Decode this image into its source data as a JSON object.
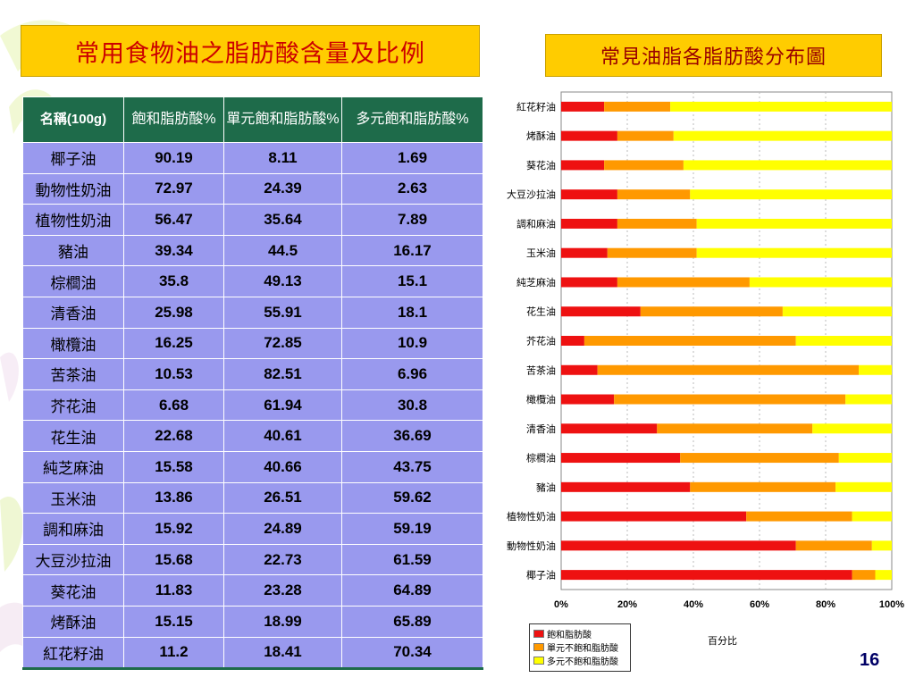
{
  "slide": {
    "title": "常用食物油之脂肪酸含量及比例",
    "subtitle": "常見油脂各脂肪酸分布圖",
    "page_number": "16"
  },
  "table": {
    "headers": [
      "名稱(100g)",
      "飽和脂肪酸%",
      "單元飽和脂肪酸%",
      "多元飽和脂肪酸%"
    ],
    "rows": [
      {
        "name": "椰子油",
        "sat": "90.19",
        "mono": "8.11",
        "poly": "1.69"
      },
      {
        "name": "動物性奶油",
        "sat": "72.97",
        "mono": "24.39",
        "poly": "2.63"
      },
      {
        "name": "植物性奶油",
        "sat": "56.47",
        "mono": "35.64",
        "poly": "7.89"
      },
      {
        "name": "豬油",
        "sat": "39.34",
        "mono": "44.5",
        "poly": "16.17"
      },
      {
        "name": "棕櫚油",
        "sat": "35.8",
        "mono": "49.13",
        "poly": "15.1"
      },
      {
        "name": "清香油",
        "sat": "25.98",
        "mono": "55.91",
        "poly": "18.1"
      },
      {
        "name": "橄欖油",
        "sat": "16.25",
        "mono": "72.85",
        "poly": "10.9"
      },
      {
        "name": "苦茶油",
        "sat": "10.53",
        "mono": "82.51",
        "poly": "6.96"
      },
      {
        "name": "芥花油",
        "sat": "6.68",
        "mono": "61.94",
        "poly": "30.8"
      },
      {
        "name": "花生油",
        "sat": "22.68",
        "mono": "40.61",
        "poly": "36.69"
      },
      {
        "name": "純芝麻油",
        "sat": "15.58",
        "mono": "40.66",
        "poly": "43.75"
      },
      {
        "name": "玉米油",
        "sat": "13.86",
        "mono": "26.51",
        "poly": "59.62"
      },
      {
        "name": "調和麻油",
        "sat": "15.92",
        "mono": "24.89",
        "poly": "59.19"
      },
      {
        "name": "大豆沙拉油",
        "sat": "15.68",
        "mono": "22.73",
        "poly": "61.59"
      },
      {
        "name": "葵花油",
        "sat": "11.83",
        "mono": "23.28",
        "poly": "64.89"
      },
      {
        "name": "烤酥油",
        "sat": "15.15",
        "mono": "18.99",
        "poly": "65.89"
      },
      {
        "name": "紅花籽油",
        "sat": "11.2",
        "mono": "18.41",
        "poly": "70.34"
      }
    ]
  },
  "chart_data": {
    "type": "bar",
    "orientation": "horizontal",
    "stacked": true,
    "categories": [
      "紅花籽油",
      "烤酥油",
      "葵花油",
      "大豆沙拉油",
      "調和麻油",
      "玉米油",
      "純芝麻油",
      "花生油",
      "芥花油",
      "苦茶油",
      "橄欖油",
      "清香油",
      "棕櫚油",
      "豬油",
      "植物性奶油",
      "動物性奶油",
      "椰子油"
    ],
    "series": [
      {
        "name": "飽和脂肪酸",
        "color": "#ee1111",
        "values": [
          13,
          17,
          13,
          17,
          17,
          14,
          17,
          24,
          7,
          11,
          16,
          29,
          36,
          39,
          56,
          71,
          88
        ]
      },
      {
        "name": "單元不飽和脂肪酸",
        "color": "#ff9900",
        "values": [
          20,
          17,
          24,
          22,
          24,
          27,
          40,
          43,
          64,
          79,
          70,
          47,
          48,
          44,
          32,
          23,
          7
        ]
      },
      {
        "name": "多元不飽和脂肪酸",
        "color": "#ffff00",
        "values": [
          67,
          66,
          63,
          61,
          59,
          59,
          43,
          33,
          29,
          10,
          14,
          24,
          16,
          17,
          12,
          6,
          5
        ]
      }
    ],
    "xlabel": "百分比",
    "ylabel": "",
    "xlim": [
      0,
      100
    ],
    "xticks": [
      "0%",
      "20%",
      "40%",
      "60%",
      "80%",
      "100%"
    ],
    "legend_position": "bottom-left"
  }
}
